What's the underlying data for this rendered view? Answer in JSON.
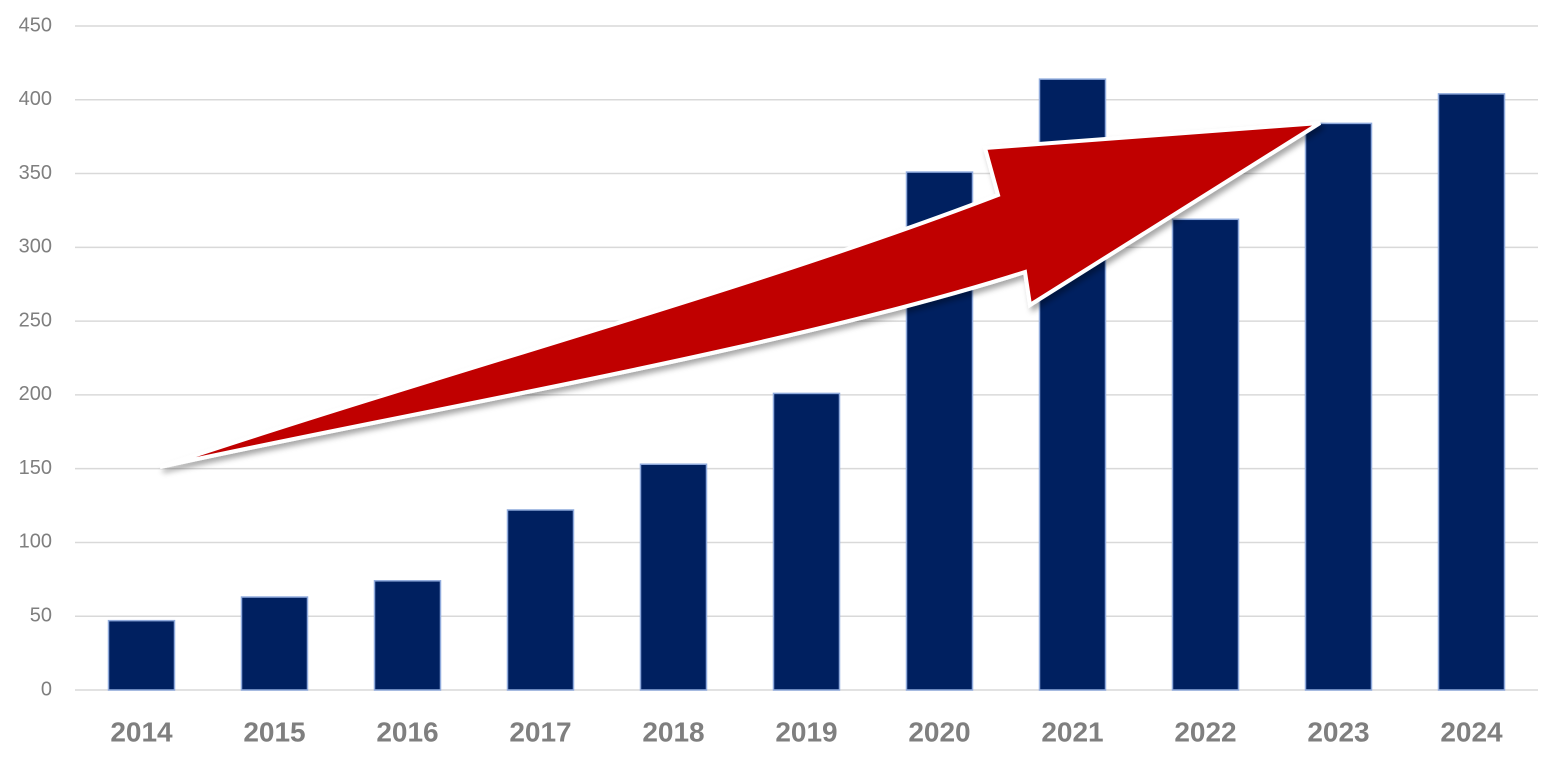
{
  "chart_data": {
    "type": "bar",
    "categories": [
      "2014",
      "2015",
      "2016",
      "2017",
      "2018",
      "2019",
      "2020",
      "2021",
      "2022",
      "2023",
      "2024"
    ],
    "values": [
      47,
      63,
      74,
      122,
      153,
      201,
      351,
      414,
      319,
      384,
      404
    ],
    "color": "#002060",
    "ylim": [
      0,
      450
    ],
    "yticks": [
      0,
      50,
      100,
      150,
      200,
      250,
      300,
      350,
      400,
      450
    ],
    "grid": true
  }
}
